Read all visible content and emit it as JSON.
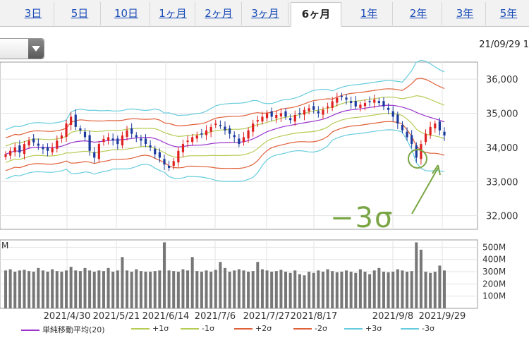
{
  "tabs": [
    {
      "label": "3日",
      "active": false
    },
    {
      "label": "5日",
      "active": false
    },
    {
      "label": "10日",
      "active": false
    },
    {
      "label": "1ヶ月",
      "active": false
    },
    {
      "label": "2ヶ月",
      "active": false
    },
    {
      "label": "3ヶ月",
      "active": false
    },
    {
      "label": "6ヶ月",
      "active": true
    },
    {
      "label": "1年",
      "active": false
    },
    {
      "label": "2年",
      "active": false
    },
    {
      "label": "3年",
      "active": false
    },
    {
      "label": "5年",
      "active": false
    }
  ],
  "datetime": "21/09/29 1",
  "annotation": "−3σ",
  "colors": {
    "up": "#e02020",
    "down": "#1a3a9c",
    "sma": "#9933cc",
    "s1": "#b5cc55",
    "s2": "#e0603a",
    "s3": "#66ccdd",
    "annotation": "#7aa544",
    "volume": "#777777"
  },
  "chart_data": {
    "type": "candlestick",
    "price_axis": {
      "ylim": [
        31600,
        36500
      ],
      "ticks": [
        "36,000",
        "35,000",
        "34,000",
        "33,000",
        "32,000"
      ]
    },
    "volume_axis": {
      "unit_label": "M",
      "ylim": [
        0,
        560
      ],
      "ticks": [
        "500M",
        "400M",
        "300M",
        "200M",
        "100M"
      ]
    },
    "x_labels": [
      "2021/4/30",
      "2021/5/21",
      "2021/6/14",
      "2021/7/6",
      "2021/7/27",
      "2021/8/17",
      "2021/9/8",
      "2021/9/29"
    ],
    "legend": [
      {
        "label": "単純移動平均(20)",
        "color": "#9933cc"
      },
      {
        "label": "+1σ",
        "color": "#b5cc55"
      },
      {
        "label": "-1σ",
        "color": "#b5cc55"
      },
      {
        "label": "+2σ",
        "color": "#e0603a"
      },
      {
        "label": "-2σ",
        "color": "#e0603a"
      },
      {
        "label": "+3σ",
        "color": "#66ccdd"
      },
      {
        "label": "-3σ",
        "color": "#66ccdd"
      }
    ],
    "close": [
      33800,
      33900,
      34000,
      33850,
      34100,
      34200,
      34150,
      34050,
      33950,
      33900,
      34000,
      34200,
      34350,
      34700,
      34900,
      34600,
      34500,
      34300,
      33900,
      33700,
      34100,
      34250,
      34300,
      34200,
      34100,
      34350,
      34500,
      34400,
      34300,
      34200,
      34100,
      34000,
      33800,
      33700,
      33500,
      33400,
      33600,
      33900,
      34100,
      34200,
      34300,
      34350,
      34400,
      34500,
      34600,
      34700,
      34650,
      34500,
      34400,
      34300,
      34100,
      34300,
      34500,
      34700,
      34800,
      34900,
      35000,
      34900,
      34950,
      35000,
      34900,
      34800,
      34950,
      35000,
      35100,
      35150,
      35100,
      35000,
      35100,
      35200,
      35350,
      35450,
      35500,
      35400,
      35300,
      35200,
      35250,
      35300,
      35350,
      35400,
      35300,
      35200,
      35100,
      34900,
      34700,
      34500,
      34300,
      34100,
      33700,
      34100,
      34400,
      34600,
      34700,
      34500,
      34350
    ],
    "volume": [
      310,
      320,
      300,
      310,
      315,
      305,
      300,
      330,
      310,
      300,
      320,
      305,
      300,
      310,
      340,
      310,
      305,
      330,
      310,
      300,
      310,
      305,
      330,
      300,
      310,
      420,
      310,
      300,
      320,
      305,
      300,
      300,
      305,
      310,
      540,
      310,
      305,
      300,
      320,
      310,
      420,
      305,
      300,
      310,
      300,
      315,
      380,
      330,
      300,
      310,
      320,
      310,
      300,
      305,
      380,
      320,
      310,
      300,
      305,
      315,
      300,
      290,
      310,
      280,
      270,
      300,
      290,
      310,
      300,
      320,
      305,
      295,
      300,
      310,
      300,
      290,
      320,
      300,
      280,
      310,
      330,
      300,
      295,
      300,
      320,
      310,
      300,
      305,
      540,
      480,
      300,
      290,
      300,
      350,
      310
    ]
  }
}
